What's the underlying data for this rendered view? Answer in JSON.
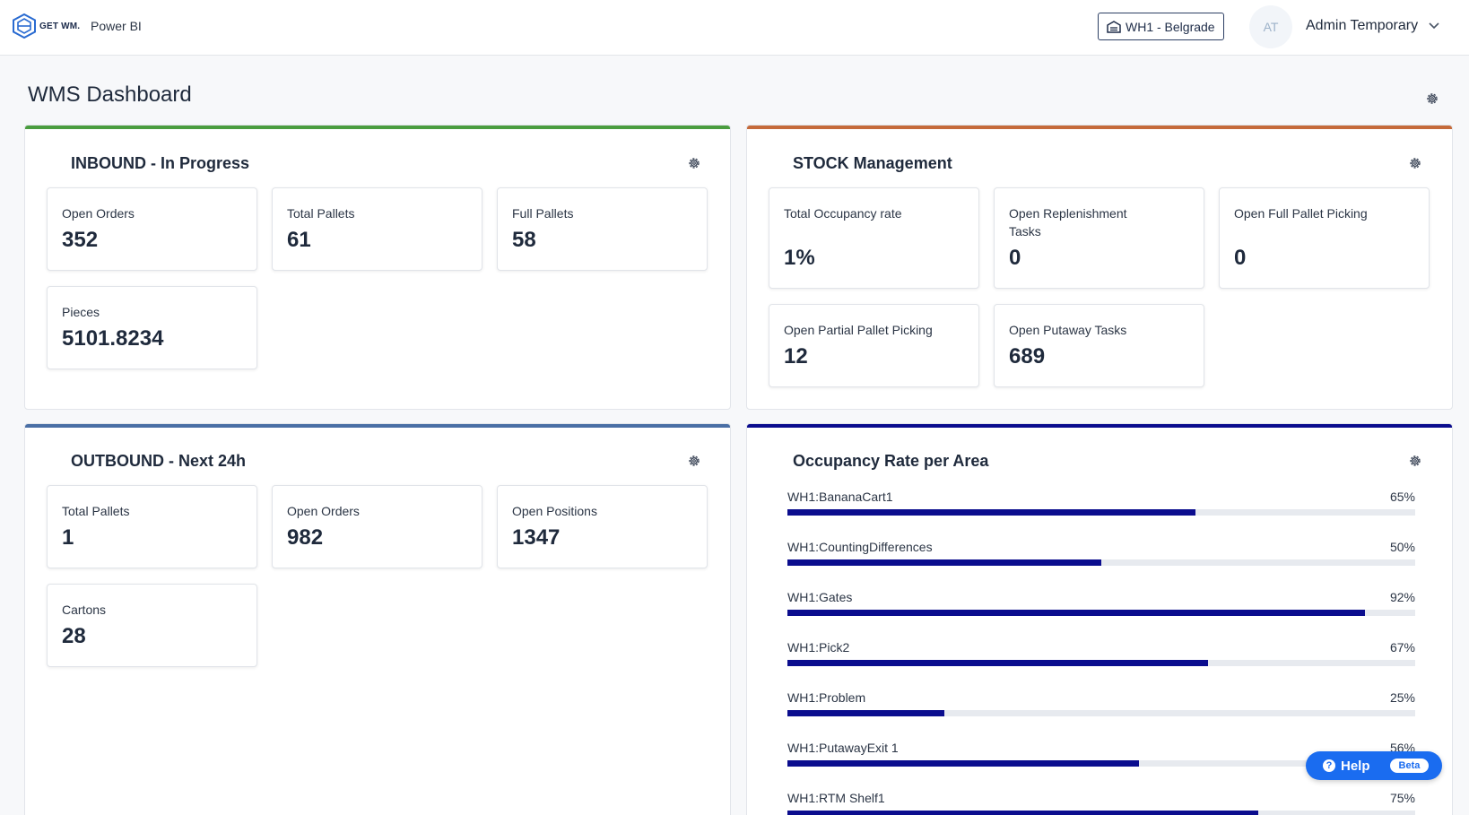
{
  "header": {
    "logo_text": "GET WM.",
    "app_name": "Power BI",
    "warehouse": "WH1 - Belgrade",
    "avatar_initials": "AT",
    "user_name": "Admin Temporary"
  },
  "page": {
    "title": "WMS Dashboard"
  },
  "inbound": {
    "title": "INBOUND - In Progress",
    "accent": "#4a9d3f",
    "cards": [
      {
        "label": "Open Orders",
        "value": "352"
      },
      {
        "label": "Total Pallets",
        "value": "61"
      },
      {
        "label": "Full Pallets",
        "value": "58"
      },
      {
        "label": "Pieces",
        "value": "5101.8234"
      }
    ]
  },
  "stock": {
    "title": "STOCK Management",
    "accent": "#c56a3a",
    "cards": [
      {
        "label": "Total Occupancy rate",
        "value": "1%"
      },
      {
        "label": "Open Replenishment Tasks",
        "value": "0"
      },
      {
        "label": "Open Full Pallet Picking",
        "value": "0"
      },
      {
        "label": "Open Partial Pallet Picking",
        "value": "12"
      },
      {
        "label": "Open Putaway Tasks",
        "value": "689"
      }
    ]
  },
  "outbound": {
    "title": "OUTBOUND - Next 24h",
    "accent": "#4a6fa5",
    "cards": [
      {
        "label": "Total Pallets",
        "value": "1"
      },
      {
        "label": "Open Orders",
        "value": "982"
      },
      {
        "label": "Open Positions",
        "value": "1347"
      },
      {
        "label": "Cartons",
        "value": "28"
      }
    ]
  },
  "occupancy": {
    "title": "Occupancy Rate per Area",
    "accent": "#0b0d8e",
    "rows": [
      {
        "name": "WH1:BananaCart1",
        "pct": "65%",
        "value": 65
      },
      {
        "name": "WH1:CountingDifferences",
        "pct": "50%",
        "value": 50
      },
      {
        "name": "WH1:Gates",
        "pct": "92%",
        "value": 92
      },
      {
        "name": "WH1:Pick2",
        "pct": "67%",
        "value": 67
      },
      {
        "name": "WH1:Problem",
        "pct": "25%",
        "value": 25
      },
      {
        "name": "WH1:PutawayExit 1",
        "pct": "56%",
        "value": 56
      },
      {
        "name": "WH1:RTM Shelf1",
        "pct": "75%",
        "value": 75
      }
    ]
  },
  "help": {
    "label": "Help",
    "badge": "Beta"
  }
}
